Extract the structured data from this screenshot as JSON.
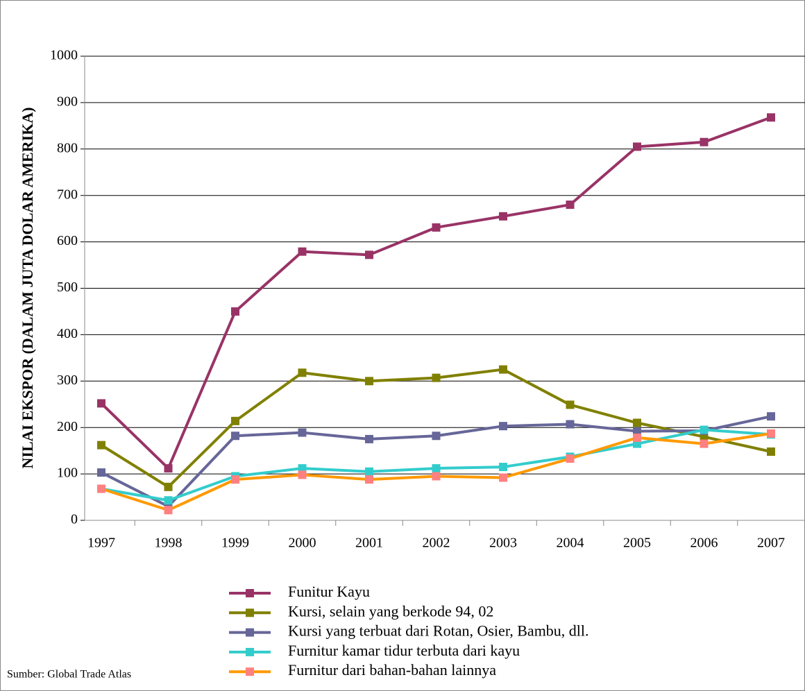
{
  "chart_data": {
    "type": "line",
    "y_axis_title": "NILAI EKSPOR (DALAM JUTA DOLAR AMERIKA)",
    "source": "Sumber: Global Trade Atlas",
    "categories": [
      "1997",
      "1998",
      "1999",
      "2000",
      "2001",
      "2002",
      "2003",
      "2004",
      "2005",
      "2006",
      "2007"
    ],
    "series": [
      {
        "name": "Funitur Kayu",
        "color": "#993366",
        "marker_color": "#993366",
        "values": [
          252,
          112,
          450,
          579,
          572,
          631,
          655,
          680,
          805,
          815,
          868
        ]
      },
      {
        "name": "Kursi, selain yang berkode 94, 02",
        "color": "#808000",
        "marker_color": "#808000",
        "values": [
          162,
          72,
          214,
          318,
          300,
          307,
          325,
          249,
          210,
          180,
          148
        ]
      },
      {
        "name": "Kursi yang terbuat dari Rotan, Osier, Bambu, dll.",
        "color": "#666699",
        "marker_color": "#666699",
        "values": [
          103,
          30,
          182,
          189,
          175,
          182,
          203,
          207,
          192,
          193,
          224
        ]
      },
      {
        "name": "Furnitur kamar tidur terbuta dari kayu",
        "color": "#33cccc",
        "marker_color": "#33cccc",
        "values": [
          68,
          43,
          95,
          112,
          105,
          112,
          115,
          137,
          165,
          195,
          185
        ]
      },
      {
        "name": "Furnitur dari bahan-bahan lainnya",
        "color": "#ff9900",
        "marker_color": "#ff8080",
        "values": [
          68,
          22,
          88,
          98,
          88,
          95,
          92,
          133,
          178,
          165,
          187
        ]
      }
    ],
    "ylim": [
      0,
      1000
    ],
    "yticks": [
      0,
      100,
      200,
      300,
      400,
      500,
      600,
      700,
      800,
      900,
      1000
    ],
    "grid": true
  }
}
